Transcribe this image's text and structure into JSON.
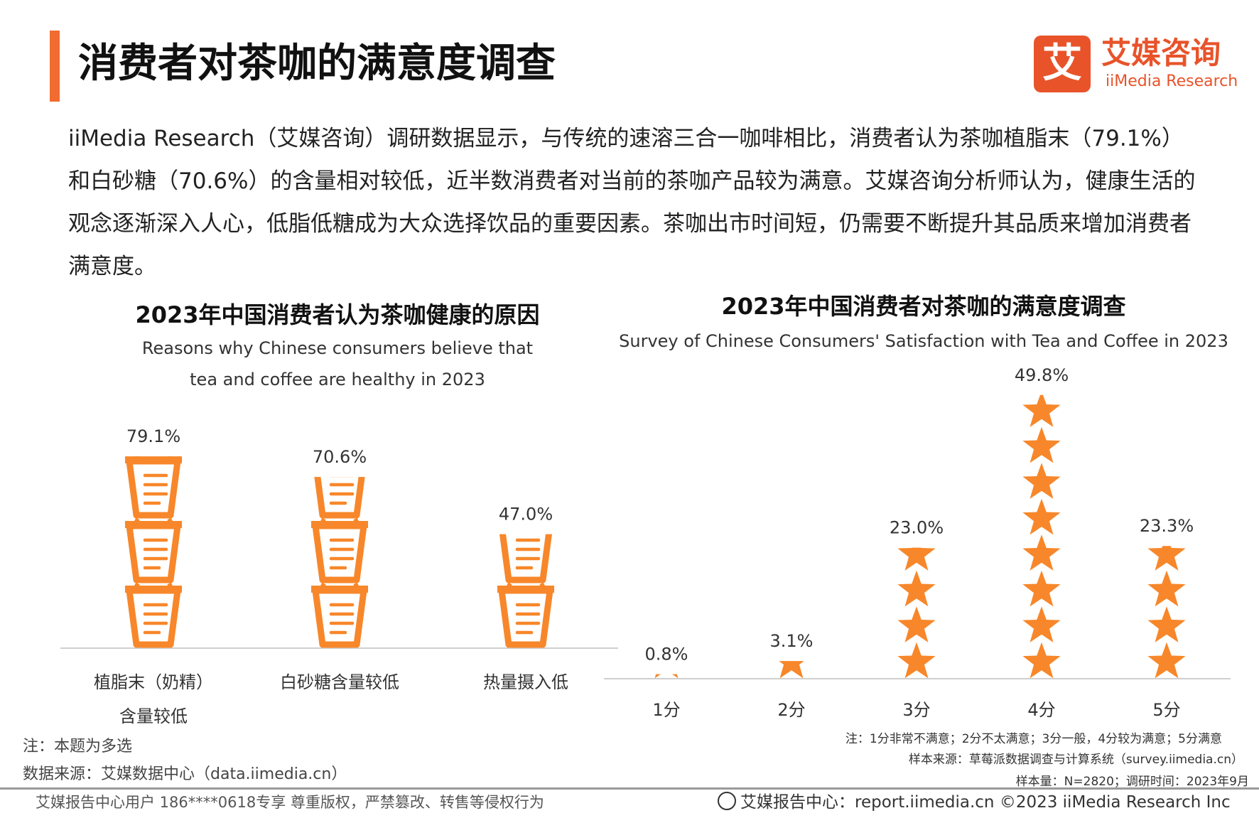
{
  "header": {
    "title": "消费者对茶咖的满意度调查",
    "logo_mark": "艾",
    "logo_cn": "艾媒咨询",
    "logo_en": "iiMedia Research"
  },
  "intro": "iiMedia Research（艾媒咨询）调研数据显示，与传统的速溶三合一咖啡相比，消费者认为茶咖植脂末（79.1%）和白砂糖（70.6%）的含量相对较低，近半数消费者对当前的茶咖产品较为满意。艾媒咨询分析师认为，健康生活的观念逐渐深入人心，低脂低糖成为大众选择饮品的重要因素。茶咖出市时间短，仍需要不断提升其品质来增加消费者满意度。",
  "colors": {
    "accent": "#f26b30",
    "mark": "#f7872a",
    "logo": "#e8532a"
  },
  "chart_data": [
    {
      "type": "bar",
      "icon": "coffee-cup-icon",
      "title": "2023年中国消费者认为茶咖健康的原因",
      "subtitle_lines": [
        "Reasons why Chinese consumers believe that",
        "tea and coffee are healthy in 2023"
      ],
      "categories": [
        [
          "植脂末（奶精）",
          "含量较低"
        ],
        [
          "白砂糖含量较低"
        ],
        [
          "热量摄入低"
        ]
      ],
      "values": [
        79.1,
        70.6,
        47.0
      ],
      "data_labels": [
        "79.1%",
        "70.6%",
        "47.0%"
      ],
      "unit": "%",
      "ylim": [
        0,
        80
      ],
      "grid": false
    },
    {
      "type": "bar",
      "icon": "star-icon",
      "title": "2023年中国消费者对茶咖的满意度调查",
      "subtitle": "Survey of Chinese Consumers' Satisfaction with Tea and Coffee in 2023",
      "categories": [
        "1分",
        "2分",
        "3分",
        "4分",
        "5分"
      ],
      "values": [
        0.8,
        3.1,
        23.0,
        49.8,
        23.3
      ],
      "data_labels": [
        "0.8%",
        "3.1%",
        "23.0%",
        "49.8%",
        "23.3%"
      ],
      "unit": "%",
      "ylim": [
        0,
        52
      ],
      "grid": false
    }
  ],
  "notes": {
    "left_note": "注：本题为多选",
    "left_source": "数据来源：艾媒数据中心（data.iimedia.cn）",
    "right_note": "注：1分非常不满意；2分不太满意；3分一般，4分较为满意；5分满意",
    "right_source": "样本来源：草莓派数据调查与计算系统（survey.iimedia.cn）",
    "right_sample": "样本量：N=2820；调研时间：2023年9月"
  },
  "footer": {
    "left": "艾媒报告中心用户 186****0618专享 尊重版权，严禁篡改、转售等侵权行为",
    "right": "艾媒报告中心：report.iimedia.cn  ©2023  iiMedia Research  Inc"
  }
}
